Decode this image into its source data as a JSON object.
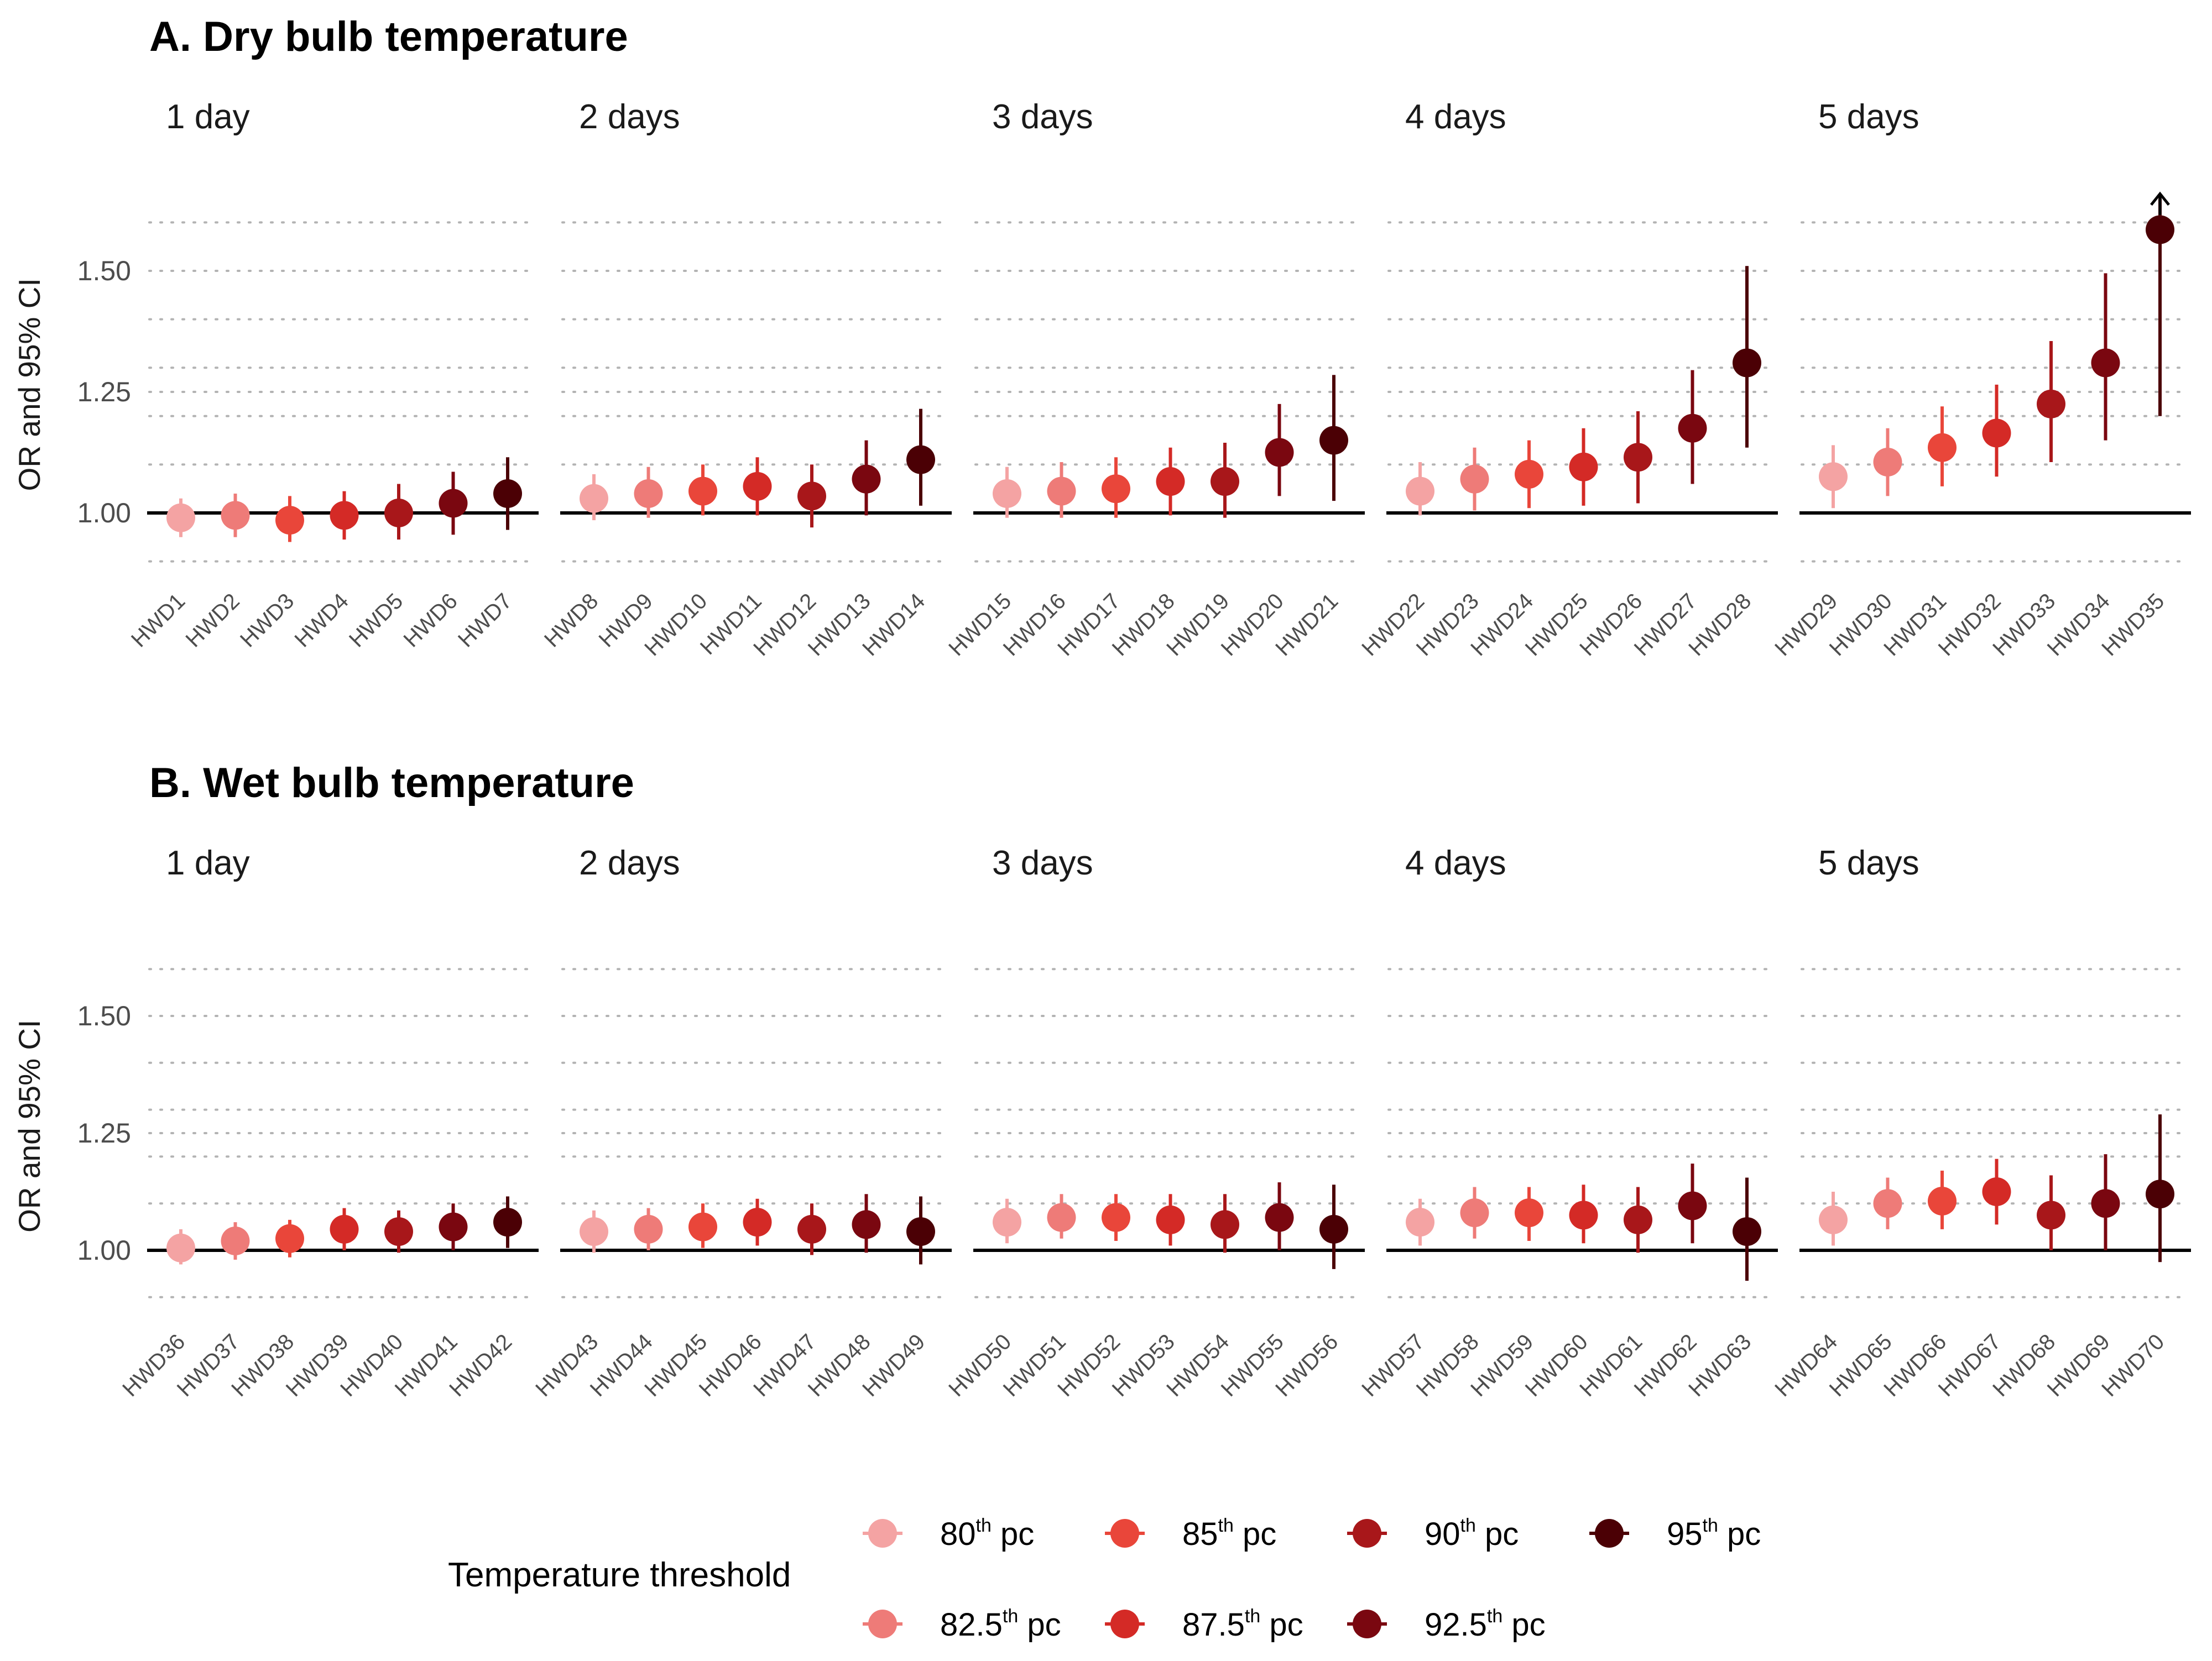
{
  "chart_data": [
    {
      "type": "scatter",
      "title": "A. Dry bulb temperature",
      "ylabel": "OR and 95% CI",
      "ylim": [
        0.88,
        1.65
      ],
      "yticks": [
        "1.00",
        "1.25",
        "1.50"
      ],
      "grid": "horizontal dotted",
      "reference_line": 1.0,
      "facets": [
        {
          "label": "1 day",
          "points": [
            {
              "x": "HWD1",
              "or": 0.99,
              "lo": 0.95,
              "hi": 1.03
            },
            {
              "x": "HWD2",
              "or": 0.995,
              "lo": 0.95,
              "hi": 1.04
            },
            {
              "x": "HWD3",
              "or": 0.985,
              "lo": 0.94,
              "hi": 1.035
            },
            {
              "x": "HWD4",
              "or": 0.995,
              "lo": 0.945,
              "hi": 1.045
            },
            {
              "x": "HWD5",
              "or": 1.0,
              "lo": 0.945,
              "hi": 1.06
            },
            {
              "x": "HWD6",
              "or": 1.02,
              "lo": 0.955,
              "hi": 1.085
            },
            {
              "x": "HWD7",
              "or": 1.04,
              "lo": 0.965,
              "hi": 1.115
            }
          ]
        },
        {
          "label": "2 days",
          "points": [
            {
              "x": "HWD8",
              "or": 1.03,
              "lo": 0.985,
              "hi": 1.08
            },
            {
              "x": "HWD9",
              "or": 1.04,
              "lo": 0.99,
              "hi": 1.095
            },
            {
              "x": "HWD10",
              "or": 1.045,
              "lo": 0.995,
              "hi": 1.1
            },
            {
              "x": "HWD11",
              "or": 1.055,
              "lo": 0.995,
              "hi": 1.115
            },
            {
              "x": "HWD12",
              "or": 1.035,
              "lo": 0.97,
              "hi": 1.1
            },
            {
              "x": "HWD13",
              "or": 1.07,
              "lo": 0.995,
              "hi": 1.15
            },
            {
              "x": "HWD14",
              "or": 1.11,
              "lo": 1.015,
              "hi": 1.215
            }
          ]
        },
        {
          "label": "3 days",
          "points": [
            {
              "x": "HWD15",
              "or": 1.04,
              "lo": 0.99,
              "hi": 1.095
            },
            {
              "x": "HWD16",
              "or": 1.045,
              "lo": 0.99,
              "hi": 1.105
            },
            {
              "x": "HWD17",
              "or": 1.05,
              "lo": 0.99,
              "hi": 1.115
            },
            {
              "x": "HWD18",
              "or": 1.065,
              "lo": 0.995,
              "hi": 1.135
            },
            {
              "x": "HWD19",
              "or": 1.065,
              "lo": 0.99,
              "hi": 1.145
            },
            {
              "x": "HWD20",
              "or": 1.125,
              "lo": 1.035,
              "hi": 1.225
            },
            {
              "x": "HWD21",
              "or": 1.15,
              "lo": 1.025,
              "hi": 1.285
            }
          ]
        },
        {
          "label": "4 days",
          "points": [
            {
              "x": "HWD22",
              "or": 1.045,
              "lo": 0.995,
              "hi": 1.105
            },
            {
              "x": "HWD23",
              "or": 1.07,
              "lo": 1.005,
              "hi": 1.135
            },
            {
              "x": "HWD24",
              "or": 1.08,
              "lo": 1.01,
              "hi": 1.15
            },
            {
              "x": "HWD25",
              "or": 1.095,
              "lo": 1.015,
              "hi": 1.175
            },
            {
              "x": "HWD26",
              "or": 1.115,
              "lo": 1.02,
              "hi": 1.21
            },
            {
              "x": "HWD27",
              "or": 1.175,
              "lo": 1.06,
              "hi": 1.295
            },
            {
              "x": "HWD28",
              "or": 1.31,
              "lo": 1.135,
              "hi": 1.51
            }
          ]
        },
        {
          "label": "5 days",
          "points": [
            {
              "x": "HWD29",
              "or": 1.075,
              "lo": 1.01,
              "hi": 1.14
            },
            {
              "x": "HWD30",
              "or": 1.105,
              "lo": 1.035,
              "hi": 1.175
            },
            {
              "x": "HWD31",
              "or": 1.135,
              "lo": 1.055,
              "hi": 1.22
            },
            {
              "x": "HWD32",
              "or": 1.165,
              "lo": 1.075,
              "hi": 1.265
            },
            {
              "x": "HWD33",
              "or": 1.225,
              "lo": 1.105,
              "hi": 1.355
            },
            {
              "x": "HWD34",
              "or": 1.31,
              "lo": 1.15,
              "hi": 1.495
            },
            {
              "x": "HWD35",
              "or": 1.585,
              "lo": 1.2,
              "hi": 1.65,
              "arrow": true
            }
          ]
        }
      ]
    },
    {
      "type": "scatter",
      "title": "B. Wet bulb temperature",
      "ylabel": "OR and 95% CI",
      "ylim": [
        0.88,
        1.65
      ],
      "yticks": [
        "1.00",
        "1.25",
        "1.50"
      ],
      "grid": "horizontal dotted",
      "reference_line": 1.0,
      "facets": [
        {
          "label": "1 day",
          "points": [
            {
              "x": "HWD36",
              "or": 1.005,
              "lo": 0.97,
              "hi": 1.045
            },
            {
              "x": "HWD37",
              "or": 1.02,
              "lo": 0.98,
              "hi": 1.06
            },
            {
              "x": "HWD38",
              "or": 1.025,
              "lo": 0.985,
              "hi": 1.065
            },
            {
              "x": "HWD39",
              "or": 1.045,
              "lo": 1.0,
              "hi": 1.09
            },
            {
              "x": "HWD40",
              "or": 1.04,
              "lo": 0.995,
              "hi": 1.085
            },
            {
              "x": "HWD41",
              "or": 1.05,
              "lo": 1.0,
              "hi": 1.1
            },
            {
              "x": "HWD42",
              "or": 1.06,
              "lo": 1.005,
              "hi": 1.115
            }
          ]
        },
        {
          "label": "2 days",
          "points": [
            {
              "x": "HWD43",
              "or": 1.04,
              "lo": 0.995,
              "hi": 1.085
            },
            {
              "x": "HWD44",
              "or": 1.045,
              "lo": 1.0,
              "hi": 1.09
            },
            {
              "x": "HWD45",
              "or": 1.05,
              "lo": 1.005,
              "hi": 1.1
            },
            {
              "x": "HWD46",
              "or": 1.06,
              "lo": 1.01,
              "hi": 1.11
            },
            {
              "x": "HWD47",
              "or": 1.045,
              "lo": 0.99,
              "hi": 1.1
            },
            {
              "x": "HWD48",
              "or": 1.055,
              "lo": 0.995,
              "hi": 1.12
            },
            {
              "x": "HWD49",
              "or": 1.04,
              "lo": 0.97,
              "hi": 1.115
            }
          ]
        },
        {
          "label": "3 days",
          "points": [
            {
              "x": "HWD50",
              "or": 1.06,
              "lo": 1.015,
              "hi": 1.11
            },
            {
              "x": "HWD51",
              "or": 1.07,
              "lo": 1.025,
              "hi": 1.12
            },
            {
              "x": "HWD52",
              "or": 1.07,
              "lo": 1.02,
              "hi": 1.12
            },
            {
              "x": "HWD53",
              "or": 1.065,
              "lo": 1.01,
              "hi": 1.12
            },
            {
              "x": "HWD54",
              "or": 1.055,
              "lo": 0.995,
              "hi": 1.12
            },
            {
              "x": "HWD55",
              "or": 1.07,
              "lo": 1.0,
              "hi": 1.145
            },
            {
              "x": "HWD56",
              "or": 1.045,
              "lo": 0.96,
              "hi": 1.14
            }
          ]
        },
        {
          "label": "4 days",
          "points": [
            {
              "x": "HWD57",
              "or": 1.06,
              "lo": 1.01,
              "hi": 1.11
            },
            {
              "x": "HWD58",
              "or": 1.08,
              "lo": 1.025,
              "hi": 1.135
            },
            {
              "x": "HWD59",
              "or": 1.08,
              "lo": 1.02,
              "hi": 1.135
            },
            {
              "x": "HWD60",
              "or": 1.075,
              "lo": 1.015,
              "hi": 1.14
            },
            {
              "x": "HWD61",
              "or": 1.065,
              "lo": 0.995,
              "hi": 1.135
            },
            {
              "x": "HWD62",
              "or": 1.095,
              "lo": 1.015,
              "hi": 1.185
            },
            {
              "x": "HWD63",
              "or": 1.04,
              "lo": 0.935,
              "hi": 1.155
            }
          ]
        },
        {
          "label": "5 days",
          "points": [
            {
              "x": "HWD64",
              "or": 1.065,
              "lo": 1.01,
              "hi": 1.125
            },
            {
              "x": "HWD65",
              "or": 1.1,
              "lo": 1.045,
              "hi": 1.155
            },
            {
              "x": "HWD66",
              "or": 1.105,
              "lo": 1.045,
              "hi": 1.17
            },
            {
              "x": "HWD67",
              "or": 1.125,
              "lo": 1.055,
              "hi": 1.195
            },
            {
              "x": "HWD68",
              "or": 1.075,
              "lo": 1.0,
              "hi": 1.16
            },
            {
              "x": "HWD69",
              "or": 1.1,
              "lo": 1.0,
              "hi": 1.205
            },
            {
              "x": "HWD70",
              "or": 1.12,
              "lo": 0.975,
              "hi": 1.29
            }
          ]
        }
      ]
    }
  ],
  "legend": {
    "title": "Temperature threshold",
    "placement": "bottom",
    "items": [
      {
        "base": "80",
        "sup": "th",
        "suffix": " pc",
        "color": "#F4A3A3"
      },
      {
        "base": "85",
        "sup": "th",
        "suffix": " pc",
        "color": "#E9463A"
      },
      {
        "base": "90",
        "sup": "th",
        "suffix": " pc",
        "color": "#A8171A"
      },
      {
        "base": "95",
        "sup": "th",
        "suffix": " pc",
        "color": "#4B0005"
      },
      {
        "base": "82.5",
        "sup": "th",
        "suffix": " pc",
        "color": "#EE7B78"
      },
      {
        "base": "87.5",
        "sup": "th",
        "suffix": " pc",
        "color": "#D42A26"
      },
      {
        "base": "92.5",
        "sup": "th",
        "suffix": " pc",
        "color": "#7A0710"
      }
    ]
  },
  "threshold_colors": [
    "#F4A3A3",
    "#EE7B78",
    "#E9463A",
    "#D42A26",
    "#A8171A",
    "#7A0710",
    "#4B0005"
  ]
}
